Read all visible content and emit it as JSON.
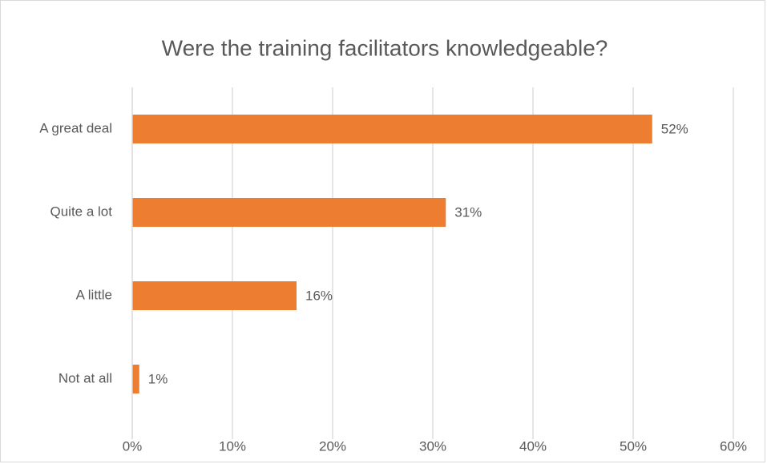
{
  "chart_data": {
    "type": "bar",
    "orientation": "horizontal",
    "title": "Were the training facilitators knowledgeable?",
    "categories": [
      "A great deal",
      "Quite a lot",
      "A little",
      "Not at all"
    ],
    "values": [
      51.9,
      31.3,
      16.4,
      0.7
    ],
    "value_labels": [
      "52%",
      "31%",
      "16%",
      "1%"
    ],
    "color": "#ed7d31",
    "xlim": [
      0,
      60
    ],
    "xticks": [
      {
        "value": 0,
        "label": "0%"
      },
      {
        "value": 10,
        "label": "10%"
      },
      {
        "value": 20,
        "label": "20%"
      },
      {
        "value": 30,
        "label": "30%"
      },
      {
        "value": 40,
        "label": "40%"
      },
      {
        "value": 50,
        "label": "50%"
      },
      {
        "value": 60,
        "label": "60%"
      }
    ],
    "grid": true
  }
}
